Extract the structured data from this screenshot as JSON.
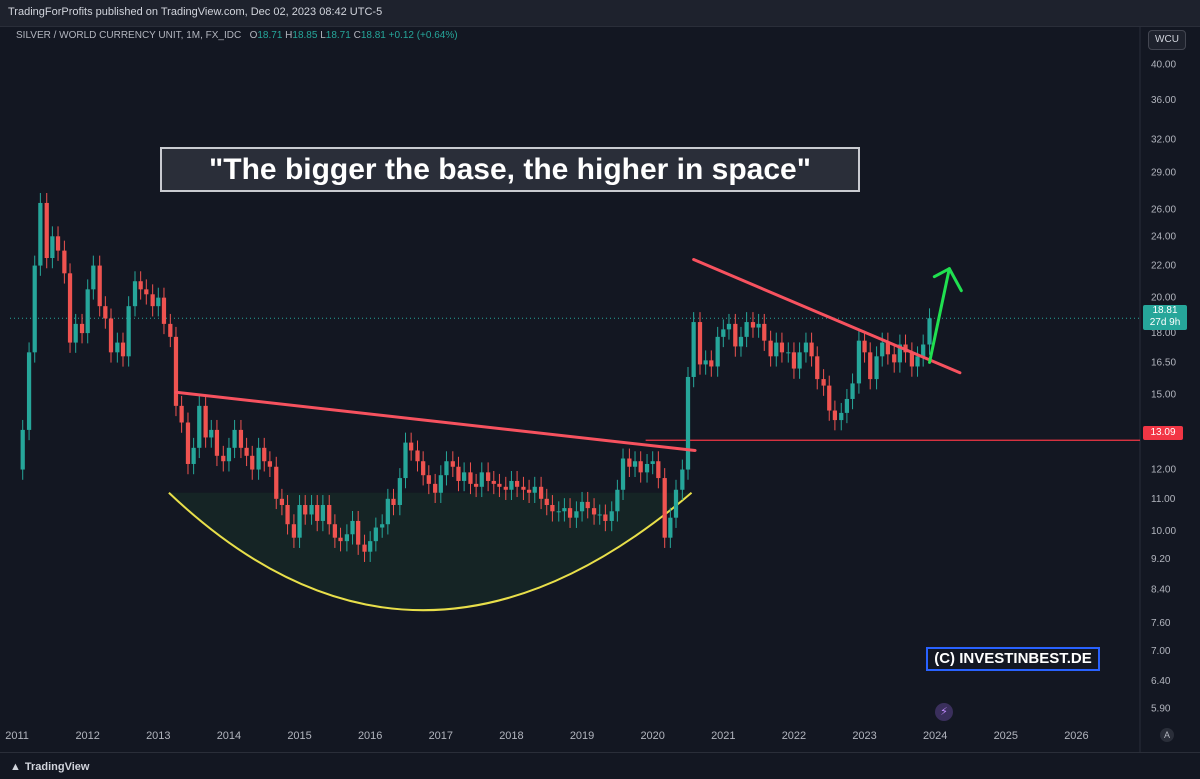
{
  "header": {
    "published": "TradingForProfits published on TradingView.com, Dec 02, 2023 08:42 UTC-5"
  },
  "legend": {
    "symbol": "SILVER / WORLD CURRENCY UNIT, 1M, FX_IDC",
    "o_label": "O",
    "o_value": "18.71",
    "h_label": "H",
    "h_value": "18.85",
    "l_label": "L",
    "l_value": "18.71",
    "c_label": "C",
    "c_value": "18.81",
    "change": "+0.12 (+0.64%)"
  },
  "currency_button": "WCU",
  "annotations": {
    "quote": "\"The bigger the base, the higher in space\"",
    "copyright": "(C) INVESTINBEST.DE"
  },
  "price_tags": {
    "last_price": "18.81",
    "countdown": "27d 9h",
    "level_price": "13.09"
  },
  "footer": {
    "brand": "TradingView",
    "auto_label": "A"
  },
  "colors": {
    "background": "#131722",
    "up": "#26a69a",
    "down": "#ef5350",
    "trendline": "#f7525f",
    "support_line": "#f23645",
    "cup_curve": "#e8df4a",
    "arrow": "#20e050"
  },
  "chart_data": {
    "type": "candlestick",
    "title": "",
    "scale": "log",
    "x_ticks": [
      "2011",
      "2012",
      "2013",
      "2014",
      "2015",
      "2016",
      "2017",
      "2018",
      "2019",
      "2020",
      "2021",
      "2022",
      "2023",
      "2024",
      "2025",
      "2026"
    ],
    "y_ticks": [
      5.9,
      6.4,
      7.0,
      7.6,
      8.4,
      9.2,
      10.0,
      11.0,
      12.0,
      13.5,
      15.0,
      16.5,
      18.0,
      20.0,
      22.0,
      24.0,
      26.0,
      29.0,
      32.0,
      36.0,
      40.0
    ],
    "y_range": [
      5.6,
      42.5
    ],
    "x_range": [
      2010.9,
      2026.9
    ],
    "levels": {
      "last": 18.81,
      "support": 13.09
    },
    "series": [
      {
        "name": "",
        "points": [
          [
            2011.0,
            12.0
          ],
          [
            2011.08,
            13.5
          ],
          [
            2011.17,
            17.0
          ],
          [
            2011.25,
            22.0
          ],
          [
            2011.33,
            26.5
          ],
          [
            2011.42,
            22.5
          ],
          [
            2011.5,
            24.0
          ],
          [
            2011.58,
            23.0
          ],
          [
            2011.67,
            21.5
          ],
          [
            2011.75,
            17.5
          ],
          [
            2011.83,
            18.5
          ],
          [
            2011.92,
            18.0
          ],
          [
            2012.0,
            20.5
          ],
          [
            2012.08,
            22.0
          ],
          [
            2012.17,
            19.5
          ],
          [
            2012.25,
            18.8
          ],
          [
            2012.33,
            17.0
          ],
          [
            2012.42,
            17.5
          ],
          [
            2012.5,
            16.8
          ],
          [
            2012.58,
            19.5
          ],
          [
            2012.67,
            21.0
          ],
          [
            2012.75,
            20.5
          ],
          [
            2012.83,
            20.2
          ],
          [
            2012.92,
            19.5
          ],
          [
            2013.0,
            20.0
          ],
          [
            2013.08,
            18.5
          ],
          [
            2013.17,
            17.8
          ],
          [
            2013.25,
            14.5
          ],
          [
            2013.33,
            13.8
          ],
          [
            2013.42,
            12.2
          ],
          [
            2013.5,
            12.8
          ],
          [
            2013.58,
            14.5
          ],
          [
            2013.67,
            13.2
          ],
          [
            2013.75,
            13.5
          ],
          [
            2013.83,
            12.5
          ],
          [
            2013.92,
            12.3
          ],
          [
            2014.0,
            12.8
          ],
          [
            2014.08,
            13.5
          ],
          [
            2014.17,
            12.8
          ],
          [
            2014.25,
            12.5
          ],
          [
            2014.33,
            12.0
          ],
          [
            2014.42,
            12.8
          ],
          [
            2014.5,
            12.3
          ],
          [
            2014.58,
            12.1
          ],
          [
            2014.67,
            11.0
          ],
          [
            2014.75,
            10.8
          ],
          [
            2014.83,
            10.2
          ],
          [
            2014.92,
            9.8
          ],
          [
            2015.0,
            10.8
          ],
          [
            2015.08,
            10.5
          ],
          [
            2015.17,
            10.8
          ],
          [
            2015.25,
            10.3
          ],
          [
            2015.33,
            10.8
          ],
          [
            2015.42,
            10.2
          ],
          [
            2015.5,
            9.8
          ],
          [
            2015.58,
            9.7
          ],
          [
            2015.67,
            9.9
          ],
          [
            2015.75,
            10.3
          ],
          [
            2015.83,
            9.6
          ],
          [
            2015.92,
            9.4
          ],
          [
            2016.0,
            9.7
          ],
          [
            2016.08,
            10.1
          ],
          [
            2016.17,
            10.2
          ],
          [
            2016.25,
            11.0
          ],
          [
            2016.33,
            10.8
          ],
          [
            2016.42,
            11.7
          ],
          [
            2016.5,
            13.0
          ],
          [
            2016.58,
            12.7
          ],
          [
            2016.67,
            12.3
          ],
          [
            2016.75,
            11.8
          ],
          [
            2016.83,
            11.5
          ],
          [
            2016.92,
            11.2
          ],
          [
            2017.0,
            11.8
          ],
          [
            2017.08,
            12.3
          ],
          [
            2017.17,
            12.1
          ],
          [
            2017.25,
            11.6
          ],
          [
            2017.33,
            11.9
          ],
          [
            2017.42,
            11.5
          ],
          [
            2017.5,
            11.4
          ],
          [
            2017.58,
            11.9
          ],
          [
            2017.67,
            11.6
          ],
          [
            2017.75,
            11.5
          ],
          [
            2017.83,
            11.4
          ],
          [
            2017.92,
            11.3
          ],
          [
            2018.0,
            11.6
          ],
          [
            2018.08,
            11.4
          ],
          [
            2018.17,
            11.3
          ],
          [
            2018.25,
            11.2
          ],
          [
            2018.33,
            11.4
          ],
          [
            2018.42,
            11.0
          ],
          [
            2018.5,
            10.8
          ],
          [
            2018.58,
            10.6
          ],
          [
            2018.67,
            10.6
          ],
          [
            2018.75,
            10.7
          ],
          [
            2018.83,
            10.4
          ],
          [
            2018.92,
            10.6
          ],
          [
            2019.0,
            10.9
          ],
          [
            2019.08,
            10.7
          ],
          [
            2019.17,
            10.5
          ],
          [
            2019.25,
            10.5
          ],
          [
            2019.33,
            10.3
          ],
          [
            2019.42,
            10.6
          ],
          [
            2019.5,
            11.3
          ],
          [
            2019.58,
            12.4
          ],
          [
            2019.67,
            12.1
          ],
          [
            2019.75,
            12.3
          ],
          [
            2019.83,
            11.9
          ],
          [
            2019.92,
            12.2
          ],
          [
            2020.0,
            12.3
          ],
          [
            2020.08,
            11.7
          ],
          [
            2020.17,
            9.8
          ],
          [
            2020.25,
            10.4
          ],
          [
            2020.33,
            11.3
          ],
          [
            2020.42,
            12.0
          ],
          [
            2020.5,
            15.8
          ],
          [
            2020.58,
            18.6
          ],
          [
            2020.67,
            16.4
          ],
          [
            2020.75,
            16.6
          ],
          [
            2020.83,
            16.3
          ],
          [
            2020.92,
            17.8
          ],
          [
            2021.0,
            18.2
          ],
          [
            2021.08,
            18.5
          ],
          [
            2021.17,
            17.3
          ],
          [
            2021.25,
            17.8
          ],
          [
            2021.33,
            18.6
          ],
          [
            2021.42,
            18.3
          ],
          [
            2021.5,
            18.5
          ],
          [
            2021.58,
            17.6
          ],
          [
            2021.67,
            16.8
          ],
          [
            2021.75,
            17.5
          ],
          [
            2021.83,
            17.0
          ],
          [
            2021.92,
            17.0
          ],
          [
            2022.0,
            16.2
          ],
          [
            2022.08,
            17.0
          ],
          [
            2022.17,
            17.5
          ],
          [
            2022.25,
            16.8
          ],
          [
            2022.33,
            15.7
          ],
          [
            2022.42,
            15.4
          ],
          [
            2022.5,
            14.3
          ],
          [
            2022.58,
            13.9
          ],
          [
            2022.67,
            14.2
          ],
          [
            2022.75,
            14.8
          ],
          [
            2022.83,
            15.5
          ],
          [
            2022.92,
            17.6
          ],
          [
            2023.0,
            17.0
          ],
          [
            2023.08,
            15.7
          ],
          [
            2023.17,
            16.8
          ],
          [
            2023.25,
            17.5
          ],
          [
            2023.33,
            16.9
          ],
          [
            2023.42,
            16.5
          ],
          [
            2023.5,
            17.4
          ],
          [
            2023.58,
            17.0
          ],
          [
            2023.67,
            16.3
          ],
          [
            2023.75,
            16.8
          ],
          [
            2023.83,
            17.4
          ],
          [
            2023.92,
            18.81
          ]
        ]
      }
    ],
    "trendlines": [
      {
        "from": [
          2013.25,
          15.1
        ],
        "to": [
          2020.6,
          12.7
        ]
      },
      {
        "from": [
          2020.58,
          22.4
        ],
        "to": [
          2024.35,
          16.0
        ]
      }
    ],
    "cup_base": {
      "left": [
        2013.15,
        11.2
      ],
      "bottom": [
        2016.75,
        7.9
      ],
      "right": [
        2020.55,
        11.2
      ]
    }
  }
}
